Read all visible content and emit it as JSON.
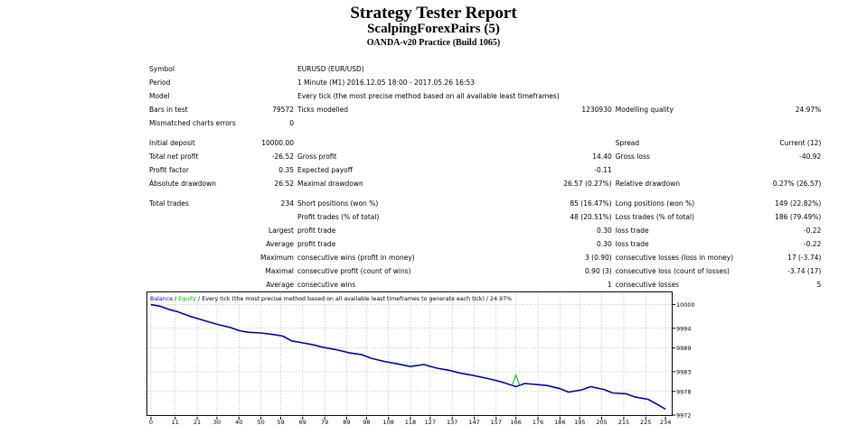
{
  "report": {
    "title": "Strategy Tester Report",
    "expert": "ScalpingForexPairs (5)",
    "server": "OANDA-v20 Practice (Build 1065)"
  },
  "table": [
    [
      "Symbol",
      "",
      "EURUSD (EUR/USD)",
      "",
      "",
      ""
    ],
    [
      "Period",
      "",
      "1 Minute (M1) 2016.12.05 18:00 - 2017.05.26 16:53",
      "",
      "",
      ""
    ],
    [
      "Model",
      "",
      "Every tick (the most precise method based on all available least timeframes)",
      "",
      "",
      ""
    ],
    [
      "Bars in test",
      "79572",
      "Ticks modelled",
      "1230930",
      "Modelling quality",
      "24.97%"
    ],
    [
      "Mismatched charts errors",
      "0",
      "",
      "",
      "",
      ""
    ],
    [],
    [
      "Initial deposit",
      "10000.00",
      "",
      "",
      "Spread",
      "Current (12)"
    ],
    [
      "Total net profit",
      "-26.52",
      "Gross profit",
      "14.40",
      "Gross loss",
      "-40.92"
    ],
    [
      "Profit factor",
      "0.35",
      "Expected payoff",
      "-0.11",
      "",
      ""
    ],
    [
      "Absolute drawdown",
      "26.52",
      "Maximal drawdown",
      "26.57 (0.27%)",
      "Relative drawdown",
      "0.27% (26.57)"
    ],
    [],
    [
      "Total trades",
      "234",
      "Short positions (won %)",
      "85 (16.47%)",
      "Long positions (won %)",
      "149 (22.82%)"
    ],
    [
      "",
      "",
      "Profit trades (% of total)",
      "48 (20.51%)",
      "Loss trades (% of total)",
      "186 (79.49%)"
    ],
    [
      "",
      "Largest",
      "profit trade",
      "0.30",
      "loss trade",
      "-0.22"
    ],
    [
      "",
      "Average",
      "profit trade",
      "0.30",
      "loss trade",
      "-0.22"
    ],
    [
      "",
      "Maximum",
      "consecutive wins (profit in money)",
      "3 (0.90)",
      "consecutive losses (loss in money)",
      "17 (-3.74)"
    ],
    [
      "",
      "Maximal",
      "consecutive profit (count of wins)",
      "0.90 (3)",
      "consecutive loss (count of losses)",
      "-3.74 (17)"
    ],
    [
      "",
      "Average",
      "consecutive wins",
      "1",
      "consecutive losses",
      "5"
    ]
  ],
  "chart_data": {
    "type": "line",
    "legend": {
      "balance": "Balance",
      "sep1": " / ",
      "equity": "Equity",
      "rest": " / Every tick (the most precise method based on all available least timeframes to generate each tick) / 24.97%"
    },
    "colors": {
      "balance": "#0000b0",
      "equity": "#00b000",
      "grid": "#a0a0a0"
    },
    "x_ticks": [
      "0",
      "11",
      "21",
      "30",
      "40",
      "50",
      "59",
      "69",
      "79",
      "89",
      "98",
      "108",
      "118",
      "127",
      "137",
      "147",
      "157",
      "166",
      "176",
      "186",
      "195",
      "205",
      "215",
      "225",
      "234"
    ],
    "x_tick_values": [
      0,
      11,
      21,
      30,
      40,
      50,
      59,
      69,
      79,
      89,
      98,
      108,
      118,
      127,
      137,
      147,
      157,
      166,
      176,
      186,
      195,
      205,
      215,
      225,
      234
    ],
    "y_ticks": [
      "10000",
      "9994",
      "9989",
      "9983",
      "9978",
      "9972"
    ],
    "y_tick_values": [
      10000,
      9994,
      9989,
      9983,
      9978,
      9972
    ],
    "xlim": [
      0,
      236
    ],
    "ylim": [
      9972,
      10001.5
    ],
    "series": [
      {
        "name": "Balance",
        "x": [
          0,
          4,
          8,
          12,
          18,
          24,
          30,
          36,
          40,
          44,
          50,
          56,
          60,
          64,
          68,
          74,
          78,
          84,
          90,
          96,
          100,
          106,
          112,
          118,
          124,
          130,
          136,
          140,
          146,
          152,
          156,
          160,
          166,
          170,
          176,
          180,
          186,
          190,
          196,
          200,
          206,
          210,
          216,
          220,
          226,
          230,
          234
        ],
        "y": [
          10000,
          9999.6,
          9998.8,
          9998.2,
          9997,
          9996,
          9995,
          9994.2,
          9993.4,
          9993,
          9992.8,
          9992.4,
          9992,
          9990.8,
          9990.4,
          9989.8,
          9989.2,
          9988.6,
          9987.8,
          9987.3,
          9986.4,
          9985.6,
          9985,
          9984.3,
          9984.8,
          9983.9,
          9983.3,
          9982.7,
          9982.1,
          9981.4,
          9980.9,
          9980.3,
          9979.2,
          9980,
          9979.7,
          9979.5,
          9978.7,
          9977.8,
          9978.4,
          9979.2,
          9978.5,
          9977.6,
          9977.4,
          9976.6,
          9976,
          9974.8,
          9973.5
        ]
      },
      {
        "name": "Equity",
        "x": [
          164,
          165,
          166,
          167,
          168
        ],
        "y": [
          9979.4,
          9980.6,
          9982.2,
          9980.4,
          9979.4
        ]
      }
    ]
  }
}
